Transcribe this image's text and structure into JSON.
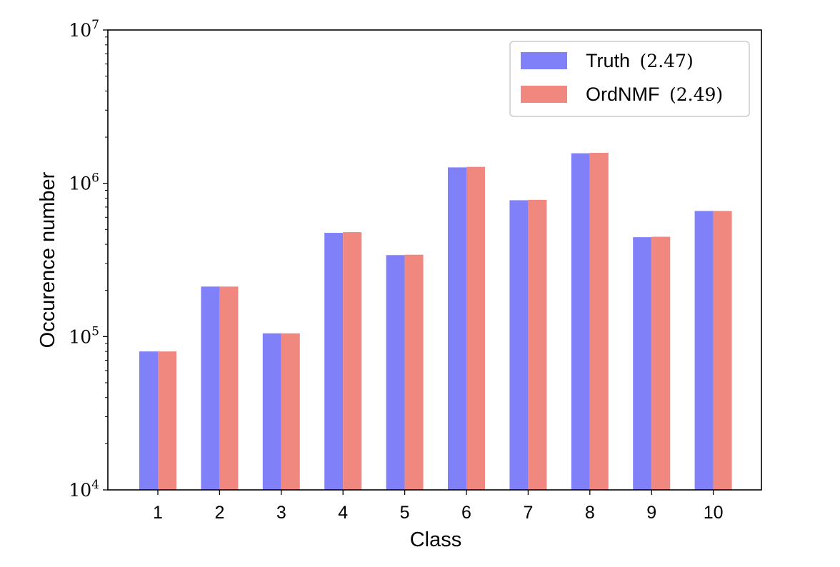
{
  "chart_data": {
    "type": "bar",
    "title": "",
    "xlabel": "Class",
    "ylabel": "Occurence number",
    "yscale": "log",
    "ylim": [
      10000,
      10000000
    ],
    "categories": [
      "1",
      "2",
      "3",
      "4",
      "5",
      "6",
      "7",
      "8",
      "9",
      "10"
    ],
    "ytick_labels": [
      {
        "base": "10",
        "exp": "4",
        "value": 10000
      },
      {
        "base": "10",
        "exp": "5",
        "value": 100000
      },
      {
        "base": "10",
        "exp": "6",
        "value": 1000000
      },
      {
        "base": "10",
        "exp": "7",
        "value": 10000000
      }
    ],
    "series": [
      {
        "name": "Truth",
        "legend_value": "(2.47)",
        "color": "#8080f8",
        "values": [
          80000,
          212000,
          105000,
          475000,
          340000,
          1270000,
          775000,
          1570000,
          445000,
          660000
        ]
      },
      {
        "name": "OrdNMF",
        "legend_value": "(2.49)",
        "color": "#f08880",
        "values": [
          80000,
          212000,
          105000,
          480000,
          342000,
          1280000,
          780000,
          1580000,
          448000,
          660000
        ]
      }
    ],
    "legend_position": "top-right",
    "grid": false
  }
}
